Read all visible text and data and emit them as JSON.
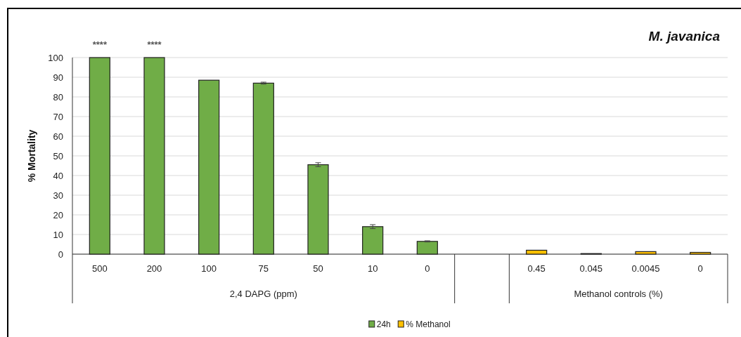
{
  "chart_data": {
    "type": "bar",
    "title": "M. javanica",
    "ylabel": "% Mortality",
    "categories": [
      "500",
      "200",
      "100",
      "75",
      "50",
      "10",
      "0",
      null,
      "0.45",
      "0.045",
      "0.0045",
      "0"
    ],
    "series": [
      {
        "name": "24h",
        "color": "#70ad47",
        "values": [
          100,
          100,
          88.5,
          87,
          45.5,
          14,
          6.5,
          null,
          null,
          null,
          null,
          null
        ],
        "errors": [
          null,
          null,
          null,
          0.5,
          1,
          1,
          0.3,
          null,
          null,
          null,
          null,
          null
        ]
      },
      {
        "name": "% Methanol",
        "color": "#ffc000",
        "values": [
          null,
          null,
          null,
          null,
          null,
          null,
          null,
          null,
          2,
          0.3,
          1.3,
          0.9
        ]
      }
    ],
    "ylim": [
      0,
      100
    ],
    "yticks": [
      0,
      10,
      20,
      30,
      40,
      50,
      60,
      70,
      80,
      90,
      100
    ],
    "grid": "y",
    "legend": "bottom",
    "annotations": [
      {
        "text": "****",
        "x": "500",
        "y": 100
      },
      {
        "text": "****",
        "x": "200",
        "y": 100
      },
      "2,4 DAPG (ppm)",
      "Methanol controls (%)"
    ]
  }
}
